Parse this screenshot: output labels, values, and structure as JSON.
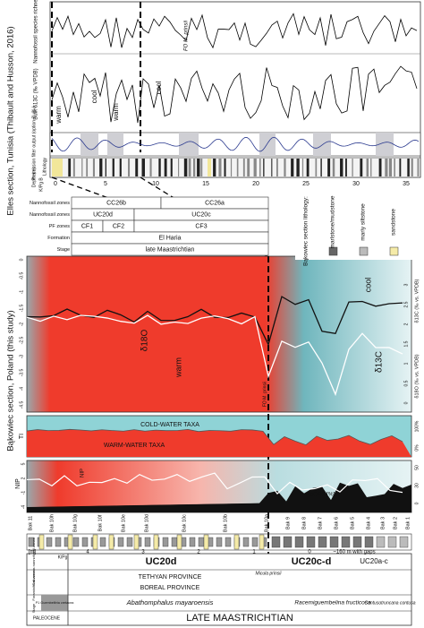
{
  "elles": {
    "title": "Elles section, Tunisia (Thibault and Husson, 2016)",
    "labels": {
      "richness": "Nannofossil species richness",
      "bulk": "Bulk δ13C (‰ VPDB)",
      "precession": "Precession filter output (option 2) (‰)",
      "lithology": "Lithology",
      "depth": "Depth (m)",
      "kpg": "K/Pg B"
    },
    "depth_ticks": [
      "0",
      "5",
      "10",
      "15",
      "20",
      "25",
      "30",
      "35"
    ],
    "warm": [
      "warm",
      "warm"
    ],
    "cool": [
      "cool",
      "cool"
    ],
    "fo": "FO M. prinsii"
  },
  "zones": {
    "rows": [
      {
        "label": "Nannofossil zones",
        "cells": [
          "CC26b",
          "CC26a"
        ]
      },
      {
        "label": "Nannofossil zones",
        "cells": [
          "UC20d",
          "UC20c"
        ]
      },
      {
        "label": "PF zones",
        "cells": [
          "CF1",
          "CF2",
          "CF3"
        ]
      },
      {
        "label": "Formation",
        "cells": [
          "El Haria"
        ]
      },
      {
        "label": "Stage",
        "cells": [
          "late Maastrichtian"
        ]
      }
    ]
  },
  "legend": {
    "title": "Bąkowiec section lithology:",
    "items": [
      "marlstone/mudstone",
      "marly siltstone",
      "sandstone"
    ]
  },
  "bakowiec": {
    "title": "Bąkowiec section, Poland (this study)",
    "isotopes": {
      "d18o": "δ18O",
      "d13c": "δ13C",
      "warm": "warm",
      "cool": "cool",
      "d13c_axis": "δ13C (‰ vs. VPDB)",
      "d18o_axis": "δ18O (‰ vs. VPDB)",
      "d13c_ticks": [
        "0",
        "0.5",
        "1",
        "1.5",
        "2",
        "2.5",
        "3"
      ],
      "d18o_ticks": [
        "0",
        "-0.5",
        "-1",
        "-1.5",
        "-2",
        "-2.5",
        "-3",
        "-3.5",
        "-4",
        "-4.5"
      ],
      "fo": "FO M. prinsii"
    },
    "ti": {
      "label": "TI",
      "cold": "COLD-WATER TAXA",
      "warm": "WARM-WATER TAXA",
      "ticks": [
        "100%",
        "0%"
      ]
    },
    "nip": {
      "label": "NIP",
      "curve": "NIP",
      "caco3": "CaCO3 [%]",
      "ticks": [
        "50",
        "30",
        "0"
      ],
      "nip_ticks": [
        "5",
        "2",
        "-1",
        "-4"
      ]
    },
    "samples": [
      "Bak 11",
      "Bak 10h",
      "Bak 10g",
      "Bak 10f",
      "Bak 10e",
      "Bak 10d",
      "Bak 10c",
      "Bak 10b",
      "Bak 10a",
      "Bak 9",
      "Bak 8",
      "Bak 7",
      "Bak 6",
      "Bak 5",
      "Bak 4",
      "Bak 3",
      "Bak 2",
      "Bak 1"
    ],
    "meters": [
      "[m]",
      "4",
      "3",
      "2",
      "1",
      "0"
    ],
    "gap": "~160 m with gaps"
  },
  "strat": {
    "row_labels": [
      "Calcareous nannofossil zones",
      "Foraminiferal zones",
      "Stage"
    ],
    "nanno": [
      "UC20d",
      "UC20c-d",
      "UC20a-c"
    ],
    "micula": "Micula prinsii",
    "kpg": "K/Pg",
    "provinces": [
      "TETHYAN PROVINCE",
      "BOREAL PROVINCE"
    ],
    "forams": [
      "P1 Guembelitria cretacea",
      "Abathomphalus mayaroensis",
      "Racemiguembelina fructicosa",
      "Contusotruncana contusa"
    ],
    "stages": [
      "PALEOCENE",
      "LATE MAASTRICHTIAN"
    ]
  }
}
